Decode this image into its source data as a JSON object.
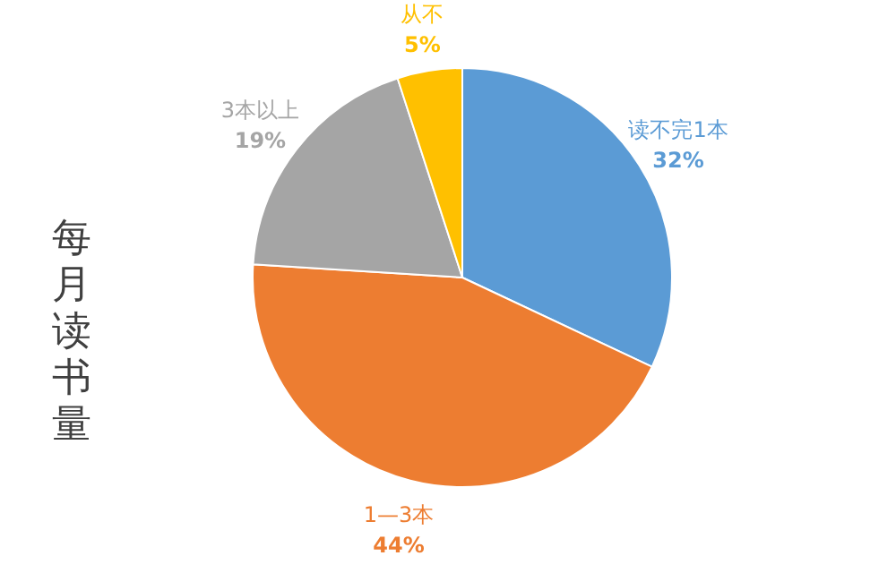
{
  "chart_data": {
    "type": "pie",
    "title": "每月读书量",
    "categories": [
      "读不完1本",
      "1—3本",
      "3本以上",
      "从不"
    ],
    "values": [
      32,
      44,
      19,
      5
    ],
    "colors": [
      "#5b9bd5",
      "#ed7d31",
      "#a5a5a5",
      "#ffc000"
    ],
    "value_labels": [
      "32%",
      "44%",
      "19%",
      "5%"
    ],
    "legend": false
  }
}
